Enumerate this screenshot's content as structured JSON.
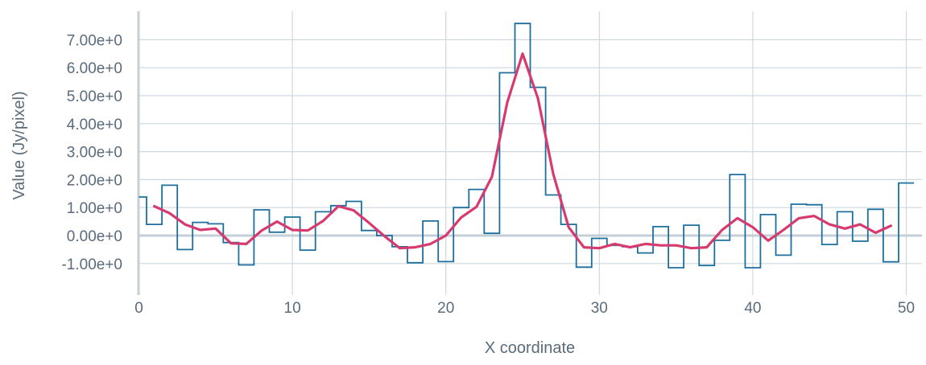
{
  "chart_data": {
    "type": "line",
    "xlabel": "X coordinate",
    "ylabel": "Value (Jy/pixel)",
    "xlim": [
      0,
      50.5
    ],
    "ylim": [
      -1.55,
      7.8
    ],
    "x_ticks": [
      0,
      10,
      20,
      30,
      40,
      50
    ],
    "y_ticks": [
      -1,
      0,
      1,
      2,
      3,
      4,
      5,
      6,
      7
    ],
    "y_tick_labels": [
      "-1.00e+0",
      "0.00e+0",
      "1.00e+0",
      "2.00e+0",
      "3.00e+0",
      "4.00e+0",
      "5.00e+0",
      "6.00e+0",
      "7.00e+0"
    ],
    "grid": true,
    "colors": {
      "step": "#1f6f9e",
      "smooth": "#d63a6e",
      "grid": "#cfd8df",
      "zero_line": "#c4cfd8"
    },
    "series": [
      {
        "style": "step",
        "x": [
          0,
          1,
          2,
          3,
          4,
          5,
          6,
          7,
          8,
          9,
          10,
          11,
          12,
          13,
          14,
          15,
          16,
          17,
          18,
          19,
          20,
          21,
          22,
          23,
          24,
          25,
          26,
          27,
          28,
          29,
          30,
          31,
          32,
          33,
          34,
          35,
          36,
          37,
          38,
          39,
          40,
          41,
          42,
          43,
          44,
          45,
          46,
          47,
          48,
          49,
          50
        ],
        "y": [
          1.38,
          0.4,
          1.8,
          -0.5,
          0.47,
          0.42,
          -0.25,
          -1.05,
          0.92,
          0.12,
          0.66,
          -0.52,
          0.85,
          1.07,
          1.22,
          0.18,
          0.0,
          -0.4,
          -0.97,
          0.52,
          -0.93,
          1.0,
          1.65,
          0.08,
          5.82,
          7.58,
          5.3,
          1.45,
          0.4,
          -1.13,
          -0.1,
          -0.35,
          -0.4,
          -0.62,
          0.32,
          -1.15,
          0.37,
          -1.07,
          -0.17,
          2.18,
          -1.15,
          0.75,
          -0.7,
          1.12,
          1.1,
          -0.32,
          0.85,
          -0.2,
          0.94,
          -0.94,
          1.88
        ]
      },
      {
        "style": "smooth",
        "x": [
          1,
          2,
          3,
          4,
          5,
          6,
          7,
          8,
          9,
          10,
          11,
          12,
          13,
          14,
          15,
          16,
          17,
          18,
          19,
          20,
          21,
          22,
          23,
          24,
          25,
          26,
          27,
          28,
          29,
          30,
          31,
          32,
          33,
          34,
          35,
          36,
          37,
          38,
          39,
          40,
          41,
          42,
          43,
          44,
          45,
          46,
          47,
          48,
          49
        ],
        "y": [
          1.05,
          0.8,
          0.4,
          0.2,
          0.25,
          -0.28,
          -0.3,
          0.18,
          0.5,
          0.2,
          0.18,
          0.52,
          1.05,
          0.9,
          0.45,
          -0.02,
          -0.45,
          -0.42,
          -0.3,
          0.0,
          0.65,
          1.03,
          2.1,
          4.75,
          6.5,
          4.9,
          2.2,
          0.3,
          -0.42,
          -0.45,
          -0.3,
          -0.42,
          -0.3,
          -0.35,
          -0.35,
          -0.45,
          -0.42,
          0.2,
          0.62,
          0.3,
          -0.18,
          0.2,
          0.62,
          0.7,
          0.4,
          0.25,
          0.4,
          0.1,
          0.35
        ]
      }
    ]
  }
}
